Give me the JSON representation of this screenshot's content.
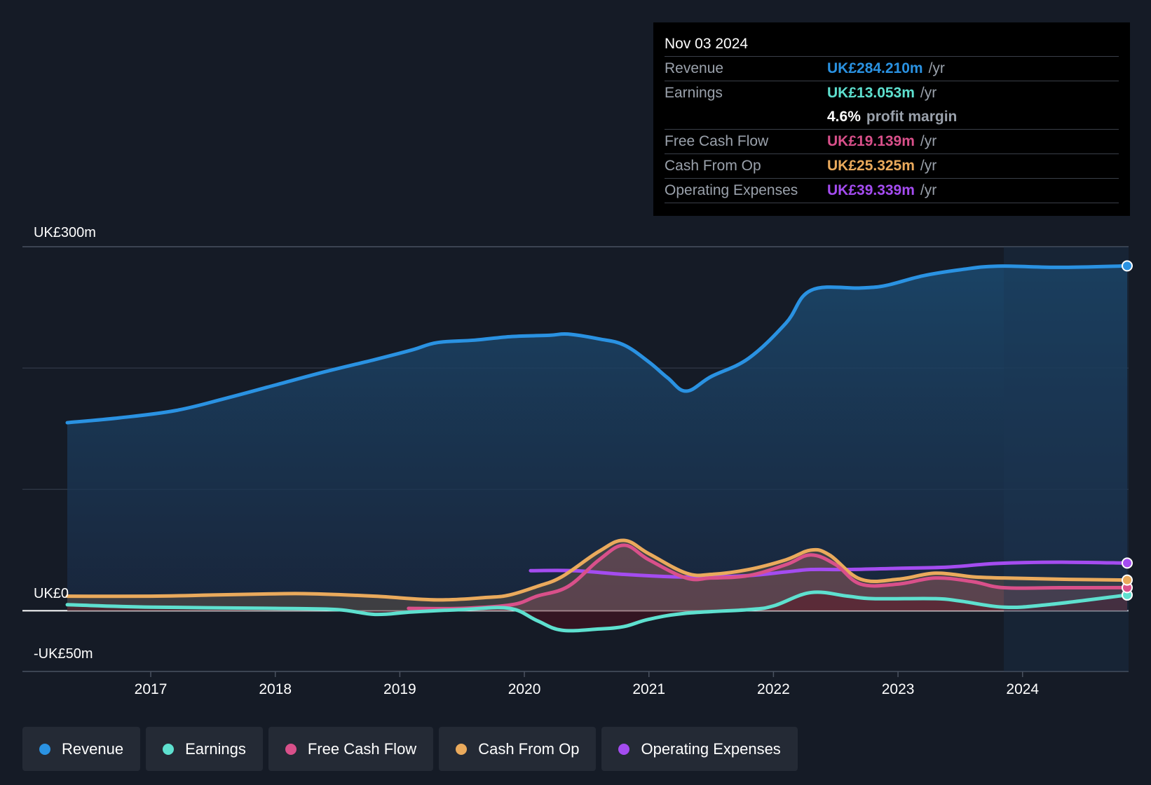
{
  "tooltip": {
    "date": "Nov 03 2024",
    "rows": [
      {
        "label": "Revenue",
        "value": "UK£284.210m",
        "unit": "/yr",
        "color": "#2a92e2"
      },
      {
        "label": "Earnings",
        "value": "UK£13.053m",
        "unit": "/yr",
        "color": "#5ee0cf"
      },
      {
        "label": "",
        "value": "4.6%",
        "unit": "profit margin",
        "color": "#ffffff"
      },
      {
        "label": "Free Cash Flow",
        "value": "UK£19.139m",
        "unit": "/yr",
        "color": "#d9508a"
      },
      {
        "label": "Cash From Op",
        "value": "UK£25.325m",
        "unit": "/yr",
        "color": "#eaaa5c"
      },
      {
        "label": "Operating Expenses",
        "value": "UK£39.339m",
        "unit": "/yr",
        "color": "#a44cf0"
      }
    ]
  },
  "legend": [
    {
      "label": "Revenue",
      "color": "#2a92e2"
    },
    {
      "label": "Earnings",
      "color": "#5ee0cf"
    },
    {
      "label": "Free Cash Flow",
      "color": "#d9508a"
    },
    {
      "label": "Cash From Op",
      "color": "#eaaa5c"
    },
    {
      "label": "Operating Expenses",
      "color": "#a44cf0"
    }
  ],
  "chart_data": {
    "type": "line",
    "title": "",
    "xlabel": "",
    "ylabel": "",
    "y_tick_labels": {
      "top": "UK£300m",
      "zero": "UK£0",
      "bottom": "-UK£50m"
    },
    "ylim": [
      -50,
      300
    ],
    "xlim": [
      2016.33,
      2024.84
    ],
    "x_ticks": [
      2017,
      2018,
      2019,
      2020,
      2021,
      2022,
      2023,
      2024
    ],
    "x_tick_labels": [
      "2017",
      "2018",
      "2019",
      "2020",
      "2021",
      "2022",
      "2023",
      "2024"
    ],
    "series": [
      {
        "name": "Revenue",
        "color": "#2a92e2",
        "filled": true,
        "points": [
          [
            2016.33,
            155
          ],
          [
            2016.75,
            159
          ],
          [
            2017.2,
            165
          ],
          [
            2017.6,
            175
          ],
          [
            2018.0,
            186
          ],
          [
            2018.4,
            197
          ],
          [
            2018.8,
            207
          ],
          [
            2019.1,
            215
          ],
          [
            2019.3,
            221
          ],
          [
            2019.6,
            223
          ],
          [
            2019.9,
            226
          ],
          [
            2020.2,
            227
          ],
          [
            2020.35,
            228
          ],
          [
            2020.6,
            224
          ],
          [
            2020.8,
            219
          ],
          [
            2021.0,
            205
          ],
          [
            2021.15,
            192
          ],
          [
            2021.3,
            181
          ],
          [
            2021.5,
            193
          ],
          [
            2021.8,
            208
          ],
          [
            2022.1,
            237
          ],
          [
            2022.3,
            264
          ],
          [
            2022.7,
            266
          ],
          [
            2022.9,
            268
          ],
          [
            2023.2,
            276
          ],
          [
            2023.5,
            281
          ],
          [
            2023.8,
            284
          ],
          [
            2024.3,
            283
          ],
          [
            2024.84,
            284.2
          ]
        ]
      },
      {
        "name": "Earnings",
        "color": "#5ee0cf",
        "filled": false,
        "points": [
          [
            2016.33,
            5
          ],
          [
            2017.0,
            3
          ],
          [
            2018.0,
            2
          ],
          [
            2018.5,
            1
          ],
          [
            2018.8,
            -3
          ],
          [
            2019.1,
            -1
          ],
          [
            2019.5,
            1
          ],
          [
            2019.88,
            2
          ],
          [
            2020.1,
            -8
          ],
          [
            2020.3,
            -16
          ],
          [
            2020.6,
            -15
          ],
          [
            2020.8,
            -13
          ],
          [
            2021.0,
            -7
          ],
          [
            2021.3,
            -2
          ],
          [
            2021.8,
            1
          ],
          [
            2022.0,
            4
          ],
          [
            2022.3,
            15
          ],
          [
            2022.6,
            12
          ],
          [
            2022.8,
            10
          ],
          [
            2023.3,
            10
          ],
          [
            2023.5,
            8
          ],
          [
            2023.85,
            3
          ],
          [
            2024.2,
            5
          ],
          [
            2024.84,
            13
          ]
        ]
      },
      {
        "name": "Free Cash Flow",
        "color": "#d9508a",
        "filled": true,
        "points": [
          [
            2019.07,
            2
          ],
          [
            2019.5,
            2
          ],
          [
            2019.9,
            5
          ],
          [
            2020.1,
            12
          ],
          [
            2020.35,
            20
          ],
          [
            2020.6,
            42
          ],
          [
            2020.8,
            54
          ],
          [
            2021.0,
            42
          ],
          [
            2021.3,
            27
          ],
          [
            2021.5,
            27
          ],
          [
            2021.8,
            29
          ],
          [
            2022.1,
            38
          ],
          [
            2022.3,
            46
          ],
          [
            2022.5,
            38
          ],
          [
            2022.7,
            22
          ],
          [
            2023.0,
            22
          ],
          [
            2023.3,
            27
          ],
          [
            2023.6,
            24
          ],
          [
            2023.85,
            19
          ],
          [
            2024.3,
            19
          ],
          [
            2024.84,
            19.1
          ]
        ]
      },
      {
        "name": "Cash From Op",
        "color": "#eaaa5c",
        "filled": true,
        "points": [
          [
            2016.33,
            12
          ],
          [
            2017.0,
            12
          ],
          [
            2017.5,
            13
          ],
          [
            2018.0,
            14
          ],
          [
            2018.3,
            14
          ],
          [
            2018.8,
            12
          ],
          [
            2019.3,
            9
          ],
          [
            2019.7,
            11
          ],
          [
            2019.88,
            13
          ],
          [
            2020.1,
            20
          ],
          [
            2020.3,
            28
          ],
          [
            2020.6,
            49
          ],
          [
            2020.8,
            58
          ],
          [
            2021.0,
            47
          ],
          [
            2021.3,
            31
          ],
          [
            2021.5,
            30
          ],
          [
            2021.8,
            34
          ],
          [
            2022.1,
            42
          ],
          [
            2022.3,
            50
          ],
          [
            2022.45,
            46
          ],
          [
            2022.7,
            26
          ],
          [
            2023.0,
            26
          ],
          [
            2023.3,
            31
          ],
          [
            2023.6,
            28
          ],
          [
            2023.85,
            27
          ],
          [
            2024.3,
            26
          ],
          [
            2024.84,
            25.3
          ]
        ]
      },
      {
        "name": "Operating Expenses",
        "color": "#a44cf0",
        "filled": false,
        "points": [
          [
            2020.05,
            33
          ],
          [
            2020.4,
            33
          ],
          [
            2020.8,
            30
          ],
          [
            2021.2,
            28
          ],
          [
            2021.5,
            28
          ],
          [
            2021.8,
            29
          ],
          [
            2022.1,
            32
          ],
          [
            2022.3,
            34
          ],
          [
            2022.6,
            34
          ],
          [
            2023.0,
            35
          ],
          [
            2023.4,
            36
          ],
          [
            2023.8,
            39
          ],
          [
            2024.3,
            40
          ],
          [
            2024.84,
            39.3
          ]
        ]
      }
    ]
  }
}
